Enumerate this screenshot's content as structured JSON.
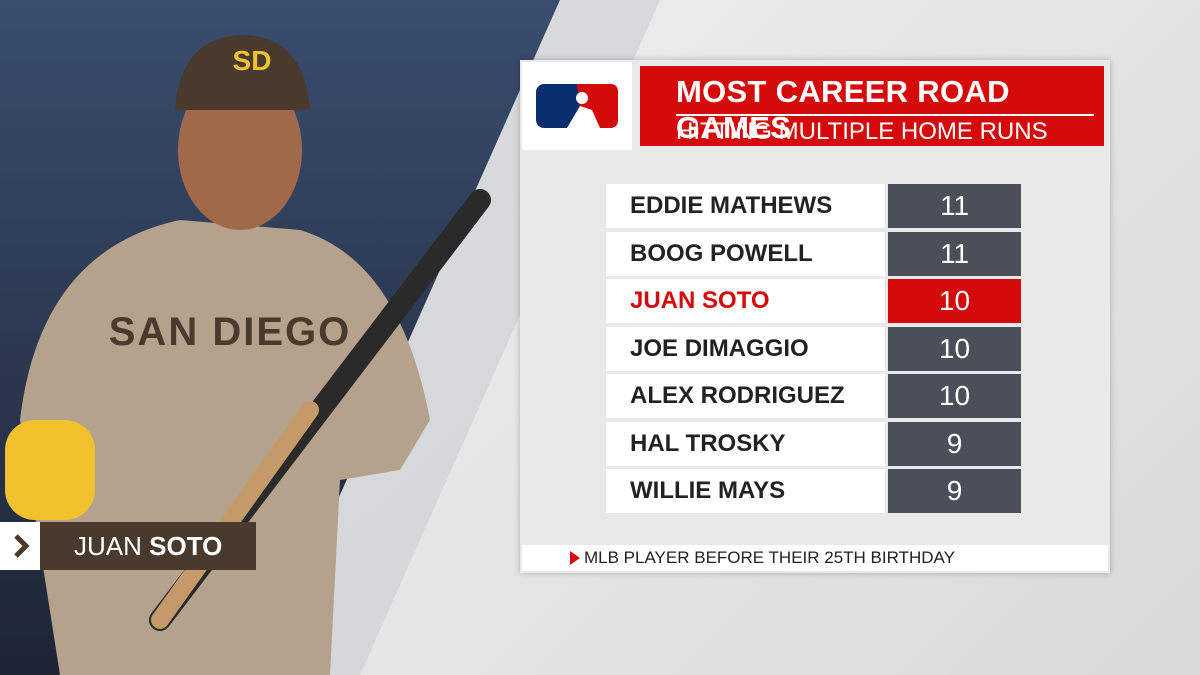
{
  "header": {
    "title": "MOST CAREER ROAD GAMES",
    "subtitle": "HITTING MULTIPLE HOME RUNS"
  },
  "table": {
    "rows": [
      [
        "EDDIE MATHEWS",
        11
      ],
      [
        "BOOG POWELL",
        11
      ],
      [
        "JUAN SOTO",
        10
      ],
      [
        "JOE DIMAGGIO",
        10
      ],
      [
        "ALEX RODRIGUEZ",
        10
      ],
      [
        "HAL TROSKY",
        9
      ],
      [
        "WILLIE MAYS",
        9
      ]
    ]
  },
  "footnote": "MLB PLAYER BEFORE THEIR 25TH BIRTHDAY",
  "player": {
    "first": "JUAN",
    "last": "SOTO"
  },
  "photo": {
    "cap_logo": "SD",
    "jersey": "SAN DIEGO"
  }
}
